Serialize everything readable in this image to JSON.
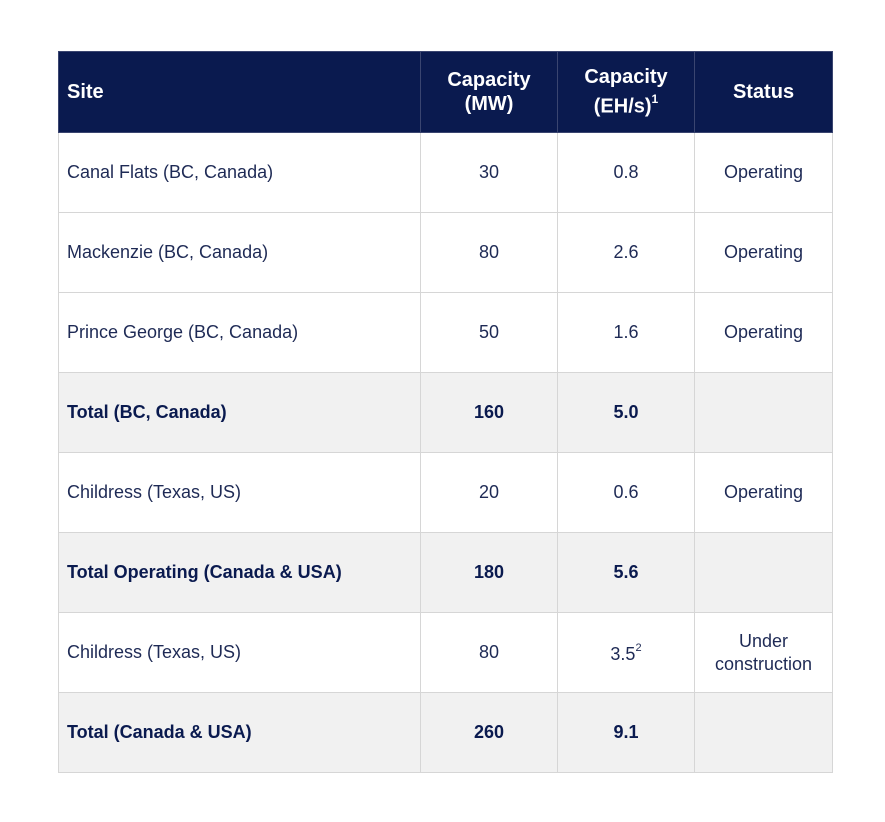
{
  "table": {
    "headers": {
      "site": "Site",
      "capacity_mw_line1": "Capacity",
      "capacity_mw_line2": "(MW)",
      "capacity_eh_line1": "Capacity",
      "capacity_eh_line2": "(EH/s)",
      "capacity_eh_footnote": "1",
      "status": "Status"
    },
    "rows": [
      {
        "site": "Canal Flats (BC, Canada)",
        "mw": "30",
        "eh": "0.8",
        "eh_footnote": "",
        "status": "Operating",
        "total": false
      },
      {
        "site": "Mackenzie (BC, Canada)",
        "mw": "80",
        "eh": "2.6",
        "eh_footnote": "",
        "status": "Operating",
        "total": false
      },
      {
        "site": "Prince George (BC, Canada)",
        "mw": "50",
        "eh": "1.6",
        "eh_footnote": "",
        "status": "Operating",
        "total": false
      },
      {
        "site": "Total (BC, Canada)",
        "mw": "160",
        "eh": "5.0",
        "eh_footnote": "",
        "status": "",
        "total": true
      },
      {
        "site": "Childress (Texas, US)",
        "mw": "20",
        "eh": "0.6",
        "eh_footnote": "",
        "status": "Operating",
        "total": false
      },
      {
        "site": "Total Operating (Canada & USA)",
        "mw": "180",
        "eh": "5.6",
        "eh_footnote": "",
        "status": "",
        "total": true
      },
      {
        "site": "Childress (Texas, US)",
        "mw": "80",
        "eh": "3.5",
        "eh_footnote": "2",
        "status": "Under construction",
        "total": false
      },
      {
        "site": "Total (Canada & USA)",
        "mw": "260",
        "eh": "9.1",
        "eh_footnote": "",
        "status": "",
        "total": true
      }
    ]
  },
  "colors": {
    "header_bg": "#0a1a4f",
    "header_text": "#ffffff",
    "body_text": "#1e2a55",
    "total_row_bg": "#f1f1f1",
    "border": "#d6d6d6"
  }
}
